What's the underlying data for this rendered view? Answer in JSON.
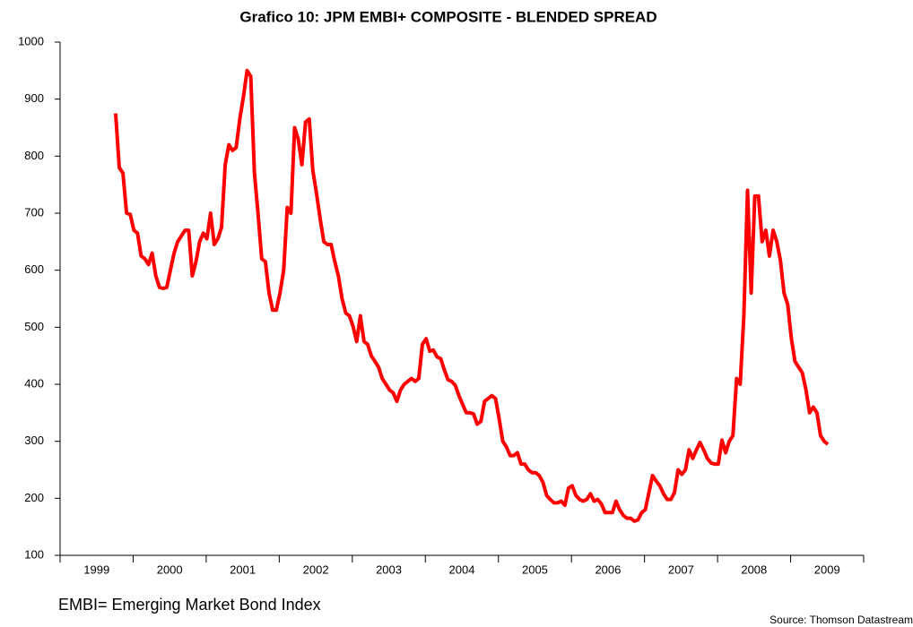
{
  "chart_data": {
    "type": "line",
    "title": "Grafico 10: JPM EMBI+ COMPOSITE - BLENDED SPREAD",
    "note": "EMBI= Emerging Market Bond Index",
    "source": "Source: Thomson Datastream",
    "color": "#ff0000",
    "xlim": [
      1999,
      2010
    ],
    "xticks": [
      1999,
      2000,
      2001,
      2002,
      2003,
      2004,
      2005,
      2006,
      2007,
      2008,
      2009,
      2010
    ],
    "xtick_labels": [
      {
        "value": 1999.5,
        "label": "1999"
      },
      {
        "value": 2000.5,
        "label": "2000"
      },
      {
        "value": 2001.5,
        "label": "2001"
      },
      {
        "value": 2002.5,
        "label": "2002"
      },
      {
        "value": 2003.5,
        "label": "2003"
      },
      {
        "value": 2004.5,
        "label": "2004"
      },
      {
        "value": 2005.5,
        "label": "2005"
      },
      {
        "value": 2006.5,
        "label": "2006"
      },
      {
        "value": 2007.5,
        "label": "2007"
      },
      {
        "value": 2008.5,
        "label": "2008"
      },
      {
        "value": 2009.5,
        "label": "2009"
      }
    ],
    "ylim": [
      100,
      1000
    ],
    "yticks": [
      100,
      200,
      300,
      400,
      500,
      600,
      700,
      800,
      900,
      1000
    ],
    "x": [
      1999.76,
      1999.81,
      1999.86,
      1999.91,
      1999.96,
      2000.01,
      2000.06,
      2000.11,
      2000.16,
      2000.21,
      2000.26,
      2000.31,
      2000.36,
      2000.41,
      2000.46,
      2000.51,
      2000.56,
      2000.61,
      2000.66,
      2000.71,
      2000.76,
      2000.81,
      2000.86,
      2000.91,
      2000.96,
      2001.01,
      2001.06,
      2001.11,
      2001.16,
      2001.21,
      2001.26,
      2001.31,
      2001.36,
      2001.41,
      2001.46,
      2001.51,
      2001.56,
      2001.61,
      2001.66,
      2001.71,
      2001.76,
      2001.81,
      2001.86,
      2001.91,
      2001.96,
      2002.01,
      2002.06,
      2002.11,
      2002.16,
      2002.21,
      2002.26,
      2002.31,
      2002.36,
      2002.41,
      2002.46,
      2002.51,
      2002.56,
      2002.61,
      2002.66,
      2002.71,
      2002.76,
      2002.81,
      2002.86,
      2002.91,
      2002.96,
      2003.01,
      2003.06,
      2003.11,
      2003.16,
      2003.21,
      2003.26,
      2003.31,
      2003.36,
      2003.41,
      2003.46,
      2003.51,
      2003.56,
      2003.61,
      2003.66,
      2003.71,
      2003.76,
      2003.81,
      2003.86,
      2003.91,
      2003.96,
      2004.01,
      2004.06,
      2004.11,
      2004.16,
      2004.21,
      2004.26,
      2004.31,
      2004.36,
      2004.41,
      2004.46,
      2004.51,
      2004.56,
      2004.61,
      2004.66,
      2004.71,
      2004.76,
      2004.81,
      2004.86,
      2004.91,
      2004.96,
      2005.01,
      2005.06,
      2005.11,
      2005.16,
      2005.21,
      2005.26,
      2005.31,
      2005.36,
      2005.41,
      2005.46,
      2005.51,
      2005.56,
      2005.61,
      2005.66,
      2005.71,
      2005.76,
      2005.81,
      2005.86,
      2005.91,
      2005.96,
      2006.01,
      2006.06,
      2006.11,
      2006.16,
      2006.21,
      2006.26,
      2006.31,
      2006.36,
      2006.41,
      2006.46,
      2006.51,
      2006.56,
      2006.61,
      2006.66,
      2006.71,
      2006.76,
      2006.81,
      2006.86,
      2006.91,
      2006.96,
      2007.01,
      2007.06,
      2007.11,
      2007.16,
      2007.21,
      2007.26,
      2007.31,
      2007.36,
      2007.41,
      2007.46,
      2007.51,
      2007.56,
      2007.61,
      2007.66,
      2007.71,
      2007.76,
      2007.81,
      2007.86,
      2007.91,
      2007.96,
      2008.01,
      2008.06,
      2008.11,
      2008.16,
      2008.21,
      2008.26,
      2008.31,
      2008.36,
      2008.41,
      2008.46,
      2008.51,
      2008.56,
      2008.61,
      2008.66,
      2008.71,
      2008.76,
      2008.81,
      2008.86,
      2008.91,
      2008.96,
      2009.01,
      2009.06,
      2009.11,
      2009.16,
      2009.21,
      2009.26,
      2009.31,
      2009.36,
      2009.41,
      2009.46,
      2009.51
    ],
    "values": [
      875,
      780,
      770,
      700,
      698,
      670,
      665,
      625,
      620,
      610,
      630,
      590,
      570,
      568,
      570,
      600,
      630,
      650,
      660,
      670,
      670,
      590,
      615,
      650,
      665,
      655,
      700,
      645,
      655,
      675,
      785,
      820,
      810,
      815,
      865,
      905,
      950,
      940,
      770,
      700,
      620,
      615,
      560,
      530,
      530,
      560,
      600,
      710,
      700,
      850,
      830,
      785,
      860,
      865,
      775,
      735,
      690,
      650,
      645,
      645,
      615,
      590,
      550,
      525,
      520,
      502,
      475,
      520,
      475,
      470,
      450,
      440,
      430,
      410,
      400,
      390,
      385,
      370,
      390,
      400,
      405,
      410,
      405,
      410,
      470,
      480,
      458,
      460,
      448,
      445,
      425,
      408,
      405,
      398,
      380,
      365,
      350,
      350,
      348,
      330,
      335,
      370,
      375,
      380,
      375,
      340,
      300,
      290,
      275,
      275,
      280,
      260,
      260,
      250,
      245,
      245,
      240,
      228,
      205,
      198,
      192,
      192,
      195,
      188,
      218,
      222,
      205,
      198,
      195,
      198,
      208,
      195,
      198,
      190,
      175,
      175,
      175,
      195,
      180,
      170,
      165,
      165,
      160,
      162,
      175,
      180,
      210,
      240,
      230,
      222,
      208,
      198,
      198,
      210,
      250,
      242,
      250,
      285,
      270,
      285,
      298,
      285,
      270,
      262,
      260,
      260,
      302,
      280,
      300,
      310,
      410,
      400,
      520,
      740,
      560,
      730,
      730,
      650,
      670,
      625,
      670,
      650,
      618,
      560,
      540,
      480,
      440,
      430,
      420,
      390,
      350,
      360,
      350,
      310,
      300,
      295
    ]
  }
}
